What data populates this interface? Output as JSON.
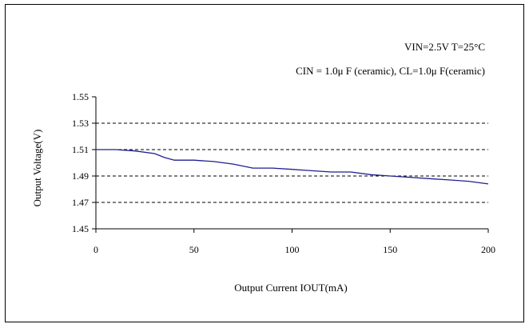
{
  "chart_data": {
    "type": "line",
    "annotations": [
      "VIN=2.5V      T=25°C",
      "CIN = 1.0μ F (ceramic), CL=1.0μ F(ceramic)"
    ],
    "xlabel": "Output Current IOUT(mA)",
    "ylabel": "Output Voltage(V)",
    "xlim": [
      0,
      200
    ],
    "ylim": [
      1.45,
      1.55
    ],
    "x_ticks": [
      0,
      50,
      100,
      150,
      200
    ],
    "x_tick_labels": [
      "0",
      "50",
      "100",
      "150",
      "200"
    ],
    "y_ticks": [
      1.45,
      1.47,
      1.49,
      1.51,
      1.53,
      1.55
    ],
    "y_tick_labels": [
      "1.45",
      "1.47",
      "1.49",
      "1.51",
      "1.53",
      "1.55"
    ],
    "grid": "horizontal-dashed",
    "series": [
      {
        "color": "#1f1f8f",
        "x": [
          0,
          10,
          20,
          30,
          35,
          40,
          50,
          60,
          70,
          80,
          90,
          100,
          110,
          120,
          130,
          140,
          150,
          160,
          170,
          180,
          190,
          200
        ],
        "y": [
          1.51,
          1.51,
          1.509,
          1.507,
          1.504,
          1.502,
          1.502,
          1.501,
          1.499,
          1.496,
          1.496,
          1.495,
          1.494,
          1.493,
          1.493,
          1.491,
          1.49,
          1.489,
          1.488,
          1.487,
          1.486,
          1.484
        ]
      }
    ]
  }
}
